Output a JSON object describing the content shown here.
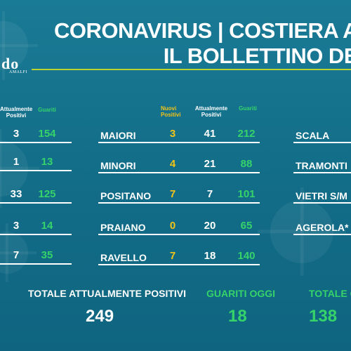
{
  "header": {
    "line1": "CORONAVIRUS | COSTIERA A",
    "line2": "IL BOLLETTINO DE"
  },
  "logo": {
    "mark": "do",
    "sub": "AMALFI"
  },
  "headers": {
    "left": {
      "attualmente": "Attualmente Positivi",
      "guariti": "Guariti"
    },
    "center": {
      "nuovi": "Nuovi Positivi",
      "attualmente": "Attualmente Positivi",
      "guariti": "Guariti"
    }
  },
  "left_rows": [
    {
      "attualmente": "3",
      "guariti": "154"
    },
    {
      "attualmente": "1",
      "guariti": "13"
    },
    {
      "attualmente": "33",
      "guariti": "125"
    },
    {
      "attualmente": "3",
      "guariti": "14"
    },
    {
      "attualmente": "7",
      "guariti": "35"
    }
  ],
  "center_rows": [
    {
      "name": "MAIORI",
      "nuovi": "3",
      "attualmente": "41",
      "guariti": "212"
    },
    {
      "name": "MINORI",
      "nuovi": "4",
      "attualmente": "21",
      "guariti": "88"
    },
    {
      "name": "POSITANO",
      "nuovi": "7",
      "attualmente": "7",
      "guariti": "101"
    },
    {
      "name": "PRAIANO",
      "nuovi": "0",
      "attualmente": "20",
      "guariti": "65"
    },
    {
      "name": "RAVELLO",
      "nuovi": "7",
      "attualmente": "18",
      "guariti": "140"
    }
  ],
  "right_rows": [
    "SCALA",
    "TRAMONTI",
    "VIETRI S/M",
    "AGEROLA*"
  ],
  "totals": {
    "attualmente_label": "TOTALE ATTUALMENTE POSITIVI",
    "attualmente_value": "249",
    "guariti_oggi_label": "GUARITI OGGI",
    "guariti_oggi_value": "18",
    "totale_label": "TOTALE G",
    "totale_value": "138"
  },
  "colors": {
    "background": "#136e89",
    "accent_rule": "#b9d332",
    "green": "#35d36a",
    "yellow": "#f2c418"
  }
}
